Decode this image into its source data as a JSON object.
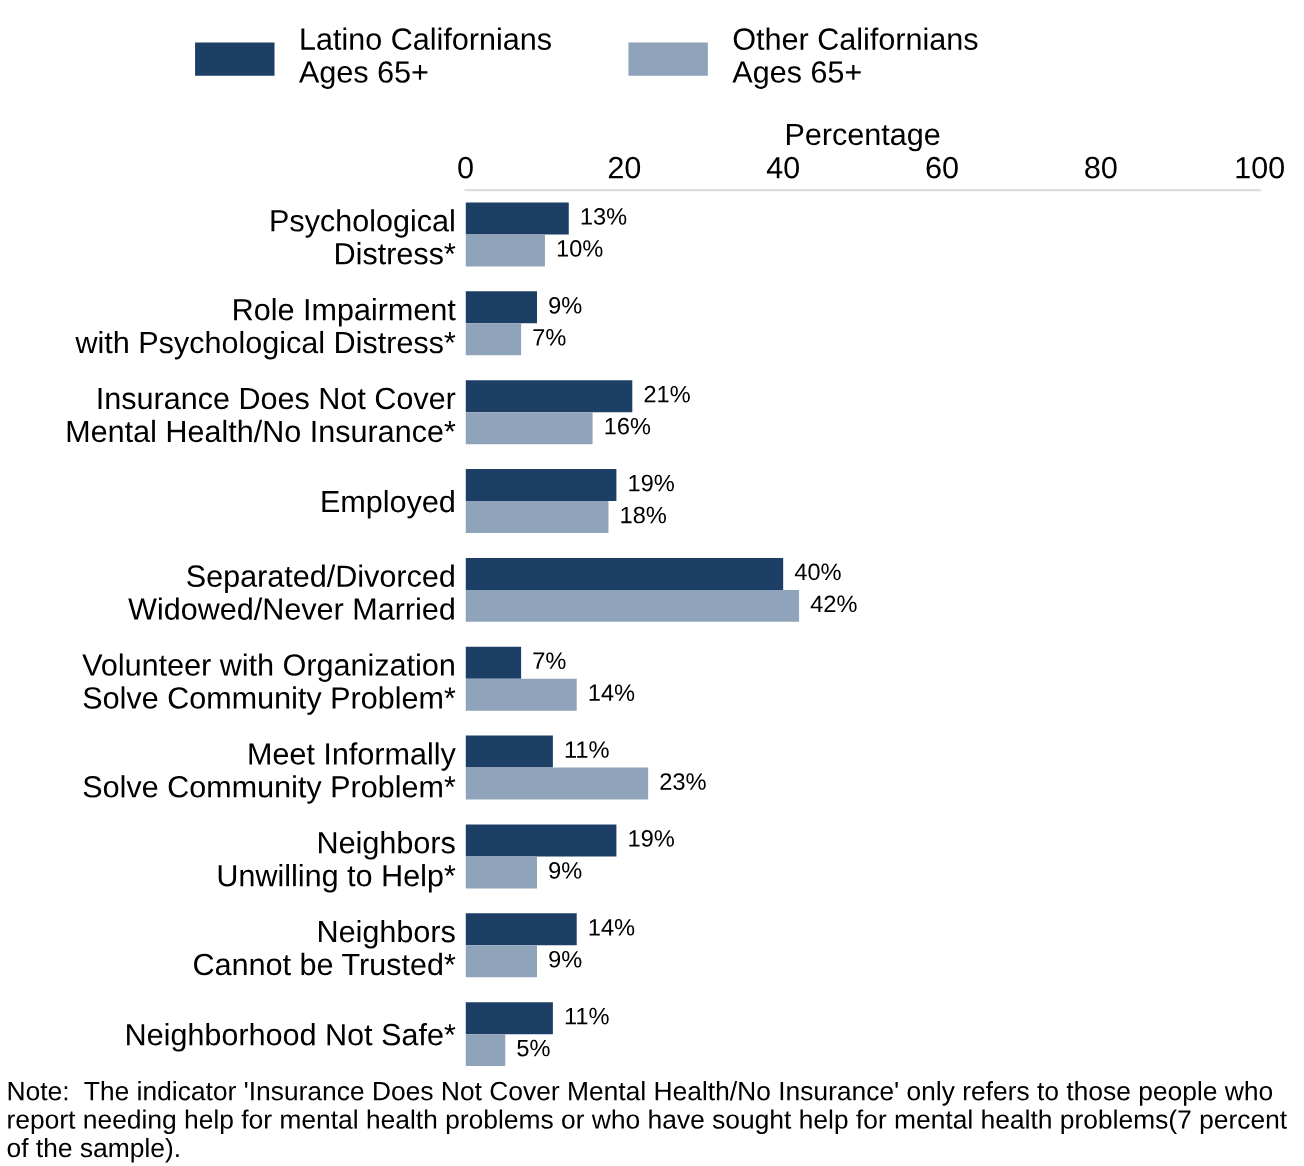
{
  "chart_data": {
    "type": "bar",
    "orientation": "horizontal",
    "xlabel": "Percentage",
    "categories": [
      "Psychological\nDistress*",
      "Role Impairment\nwith Psychological Distress*",
      "Insurance Does Not Cover\nMental Health/No Insurance*",
      "Employed",
      "Separated/Divorced\nWidowed/Never Married",
      "Volunteer with Organization\nSolve Community Problem*",
      "Meet Informally\nSolve Community Problem*",
      "Neighbors\nUnwilling to Help*",
      "Neighbors\nCannot be Trusted*",
      "Neighborhood Not Safe*"
    ],
    "series": [
      {
        "name": "Latino Californians\nAges 65+",
        "color": "#1d3f66",
        "values": [
          13,
          9,
          21,
          19,
          40,
          7,
          11,
          19,
          14,
          11
        ],
        "value_labels": [
          "13%",
          "9%",
          "21%",
          "19%",
          "40%",
          "7%",
          "11%",
          "19%",
          "14%",
          "11%"
        ]
      },
      {
        "name": "Other Californians\nAges 65+",
        "color": "#8fa3ba",
        "values": [
          10,
          7,
          16,
          18,
          42,
          14,
          23,
          9,
          9,
          5
        ],
        "value_labels": [
          "10%",
          "7%",
          "16%",
          "18%",
          "42%",
          "14%",
          "23%",
          "9%",
          "9%",
          "5%"
        ]
      }
    ],
    "xlim": [
      0,
      100
    ],
    "xticks": [
      0,
      20,
      40,
      60,
      80,
      100
    ],
    "grid": false,
    "legend": "top",
    "annotations": [
      "Note:  The indicator 'Insurance Does Not Cover Mental Health/No Insurance' only refers to those people who report needing help for mental health problems or who have sought help for mental health problems(7 percent of the sample)."
    ]
  }
}
